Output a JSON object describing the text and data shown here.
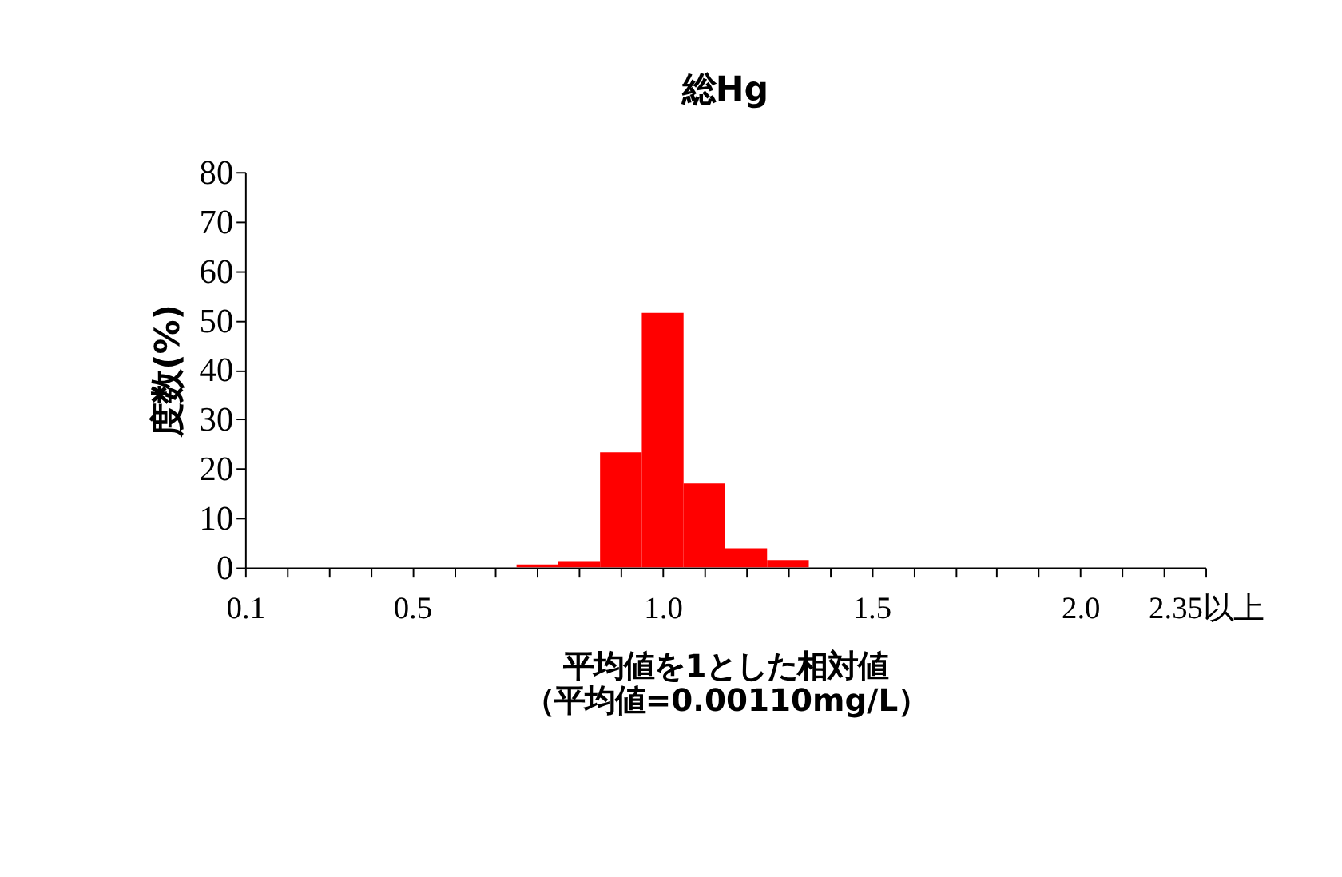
{
  "chart_data": {
    "type": "bar",
    "title": "総Hg",
    "xlabel": "平均値を1とした相対値（平均値=0.00110mg/L）",
    "ylabel": "度数(%)",
    "categories": [
      "0.1",
      null,
      null,
      null,
      "0.5",
      null,
      null,
      null,
      null,
      null,
      "1.0",
      null,
      null,
      null,
      null,
      "1.5",
      null,
      null,
      null,
      null,
      "2.0",
      null,
      null,
      "2.35以上"
    ],
    "values": [
      null,
      null,
      null,
      null,
      null,
      null,
      null,
      0.6,
      1.3,
      23.3,
      51.5,
      17.0,
      3.9,
      1.5,
      null,
      null,
      null,
      null,
      null,
      null,
      null,
      null,
      null,
      null
    ],
    "color": "#ff0000",
    "ylim": [
      0,
      80
    ],
    "yticks": [
      0,
      10,
      20,
      30,
      40,
      50,
      60,
      70,
      80
    ],
    "grid": false
  }
}
